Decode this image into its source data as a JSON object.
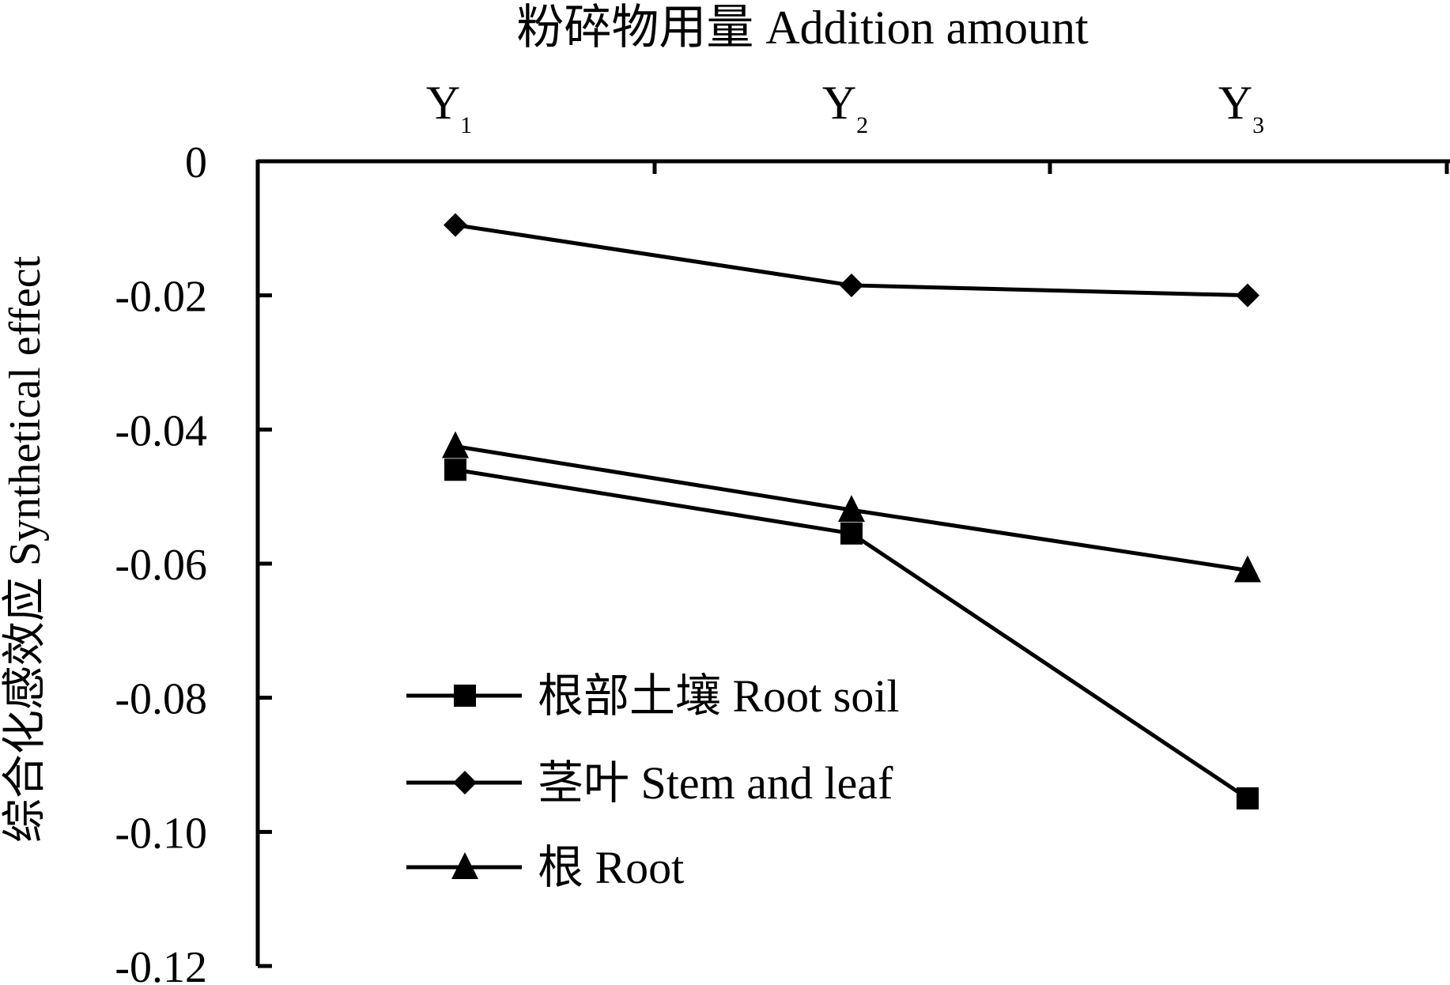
{
  "chart_data": {
    "type": "line",
    "xlabel": "粉碎物用量 Addition amount",
    "ylabel": "综合化感效应 Synthetical effect",
    "categories": [
      {
        "base": "Y",
        "sub": "1"
      },
      {
        "base": "Y",
        "sub": "2"
      },
      {
        "base": "Y",
        "sub": "3"
      }
    ],
    "ylim": [
      -0.12,
      0
    ],
    "yticks": [
      "0",
      "-0.02",
      "-0.04",
      "-0.06",
      "-0.08",
      "-0.10",
      "-0.12"
    ],
    "ytick_values": [
      0,
      -0.02,
      -0.04,
      -0.06,
      -0.08,
      -0.1,
      -0.12
    ],
    "x_axis_position": "top",
    "grid": false,
    "legend_position": "lower-left",
    "series": [
      {
        "name": "根部土壤 Root soil",
        "marker": "square",
        "values": [
          -0.046,
          -0.0555,
          -0.095
        ]
      },
      {
        "name": "茎叶 Stem and leaf",
        "marker": "diamond",
        "values": [
          -0.0095,
          -0.0185,
          -0.02
        ]
      },
      {
        "name": "根 Root",
        "marker": "triangle",
        "values": [
          -0.0425,
          -0.052,
          -0.061
        ]
      }
    ],
    "colors": {
      "line": "#000000",
      "marker": "#000000"
    }
  }
}
